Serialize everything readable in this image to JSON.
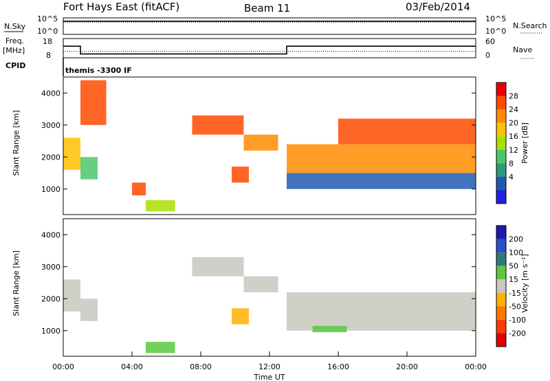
{
  "header": {
    "station": "Fort Hays East (fitACF)",
    "beam": "Beam 11",
    "date": "03/Feb/2014"
  },
  "panels": {
    "nsky_label": "N.Sky",
    "nsky_ticks": [
      "10^5",
      "10^0"
    ],
    "nsearch_label": "N.Search",
    "nsearch_ticks": [
      "10^5",
      "10^0"
    ],
    "freq_label": "Freq.",
    "freq_unit": "[MHz]",
    "freq_ticks": [
      "18",
      "8"
    ],
    "nave_label": "Nave",
    "nave_ticks": [
      "60",
      "0"
    ],
    "cpid_label": "CPID",
    "cpid_text": "themis -3300 IF"
  },
  "power_colorbar": {
    "label": "Power [dB]",
    "ticks": [
      "28",
      "24",
      "20",
      "16",
      "12",
      "8",
      "4"
    ],
    "colors": [
      "#e80000",
      "#ff4a00",
      "#ff8c00",
      "#ffc000",
      "#a8e000",
      "#4cc86a",
      "#2e9a78",
      "#1e5ab0",
      "#2020e0"
    ]
  },
  "velocity_colorbar": {
    "label": "Velocity [m s⁻¹]",
    "ticks": [
      "200",
      "100",
      "50",
      "15",
      "-15",
      "-50",
      "-100",
      "-200"
    ],
    "colors": [
      "#1a1ab0",
      "#2b4fc8",
      "#2f7a78",
      "#5cc840",
      "#c8c8c0",
      "#ffb000",
      "#ff7800",
      "#ff3a00",
      "#e00000"
    ]
  },
  "chart_data": [
    {
      "type": "line",
      "name": "nsky-nsearch",
      "ylim_log10": [
        0,
        5
      ],
      "x": [
        "00:00",
        "04:00",
        "08:00",
        "12:00",
        "16:00",
        "20:00",
        "00:00"
      ],
      "nsky_log10": [
        4.0,
        4.1,
        4.0,
        4.0,
        4.0,
        4.0,
        4.0
      ],
      "nsearch_log10": [
        3.7,
        3.8,
        3.7,
        3.7,
        3.7,
        3.7,
        3.7
      ]
    },
    {
      "type": "line",
      "name": "freq-nave",
      "freq_ylim": [
        8,
        18
      ],
      "nave_ylim": [
        0,
        60
      ],
      "freq_steps": [
        {
          "start_h": 0.0,
          "end_h": 1.0,
          "value": 14
        },
        {
          "start_h": 1.0,
          "end_h": 13.0,
          "value": 10
        },
        {
          "start_h": 13.0,
          "end_h": 24.0,
          "value": 14
        }
      ],
      "nave_value": 20
    },
    {
      "type": "heatmap",
      "name": "power",
      "xlabel": "",
      "ylabel": "Slant Range [km]",
      "xlim_hours": [
        0,
        24
      ],
      "ylim_km": [
        200,
        4500
      ],
      "yticks": [
        "4000",
        "3000",
        "2000",
        "1000"
      ],
      "regions": [
        {
          "start_h": 0.0,
          "end_h": 1.0,
          "low_km": 1600,
          "high_km": 2600,
          "level": 5
        },
        {
          "start_h": 1.0,
          "end_h": 2.0,
          "low_km": 1300,
          "high_km": 2000,
          "level": 3
        },
        {
          "start_h": 1.0,
          "end_h": 2.5,
          "low_km": 3000,
          "high_km": 4400,
          "level": 7
        },
        {
          "start_h": 4.0,
          "end_h": 4.8,
          "low_km": 800,
          "high_km": 1200,
          "level": 7
        },
        {
          "start_h": 4.8,
          "end_h": 6.5,
          "low_km": 300,
          "high_km": 650,
          "level": 4
        },
        {
          "start_h": 7.5,
          "end_h": 10.5,
          "low_km": 2700,
          "high_km": 3300,
          "level": 7
        },
        {
          "start_h": 9.8,
          "end_h": 10.8,
          "low_km": 1200,
          "high_km": 1700,
          "level": 7
        },
        {
          "start_h": 10.5,
          "end_h": 12.5,
          "low_km": 2200,
          "high_km": 2700,
          "level": 6
        },
        {
          "start_h": 13.0,
          "end_h": 24.0,
          "low_km": 1000,
          "high_km": 1500,
          "level": 1
        },
        {
          "start_h": 13.0,
          "end_h": 24.0,
          "low_km": 1500,
          "high_km": 2400,
          "level": 6
        },
        {
          "start_h": 16.0,
          "end_h": 24.0,
          "low_km": 2400,
          "high_km": 3200,
          "level": 7
        }
      ]
    },
    {
      "type": "heatmap",
      "name": "velocity",
      "xlabel": "Time UT",
      "ylabel": "Slant Range [km]",
      "xlim_hours": [
        0,
        24
      ],
      "ylim_km": [
        200,
        4500
      ],
      "yticks": [
        "4000",
        "3000",
        "2000",
        "1000"
      ],
      "xticks": [
        "00:00",
        "04:00",
        "08:00",
        "12:00",
        "16:00",
        "20:00",
        "00:00"
      ],
      "regions": [
        {
          "start_h": 0.0,
          "end_h": 1.0,
          "low_km": 1600,
          "high_km": 2600,
          "level": 4
        },
        {
          "start_h": 1.0,
          "end_h": 2.0,
          "low_km": 1300,
          "high_km": 2000,
          "level": 4
        },
        {
          "start_h": 4.8,
          "end_h": 6.5,
          "low_km": 300,
          "high_km": 650,
          "level": 3
        },
        {
          "start_h": 7.5,
          "end_h": 10.5,
          "low_km": 2700,
          "high_km": 3300,
          "level": 4
        },
        {
          "start_h": 9.8,
          "end_h": 10.8,
          "low_km": 1200,
          "high_km": 1700,
          "level": 5
        },
        {
          "start_h": 10.5,
          "end_h": 12.5,
          "low_km": 2200,
          "high_km": 2700,
          "level": 4
        },
        {
          "start_h": 13.0,
          "end_h": 24.0,
          "low_km": 1000,
          "high_km": 2200,
          "level": 4
        },
        {
          "start_h": 14.5,
          "end_h": 16.5,
          "low_km": 950,
          "high_km": 1150,
          "level": 3
        }
      ]
    }
  ]
}
